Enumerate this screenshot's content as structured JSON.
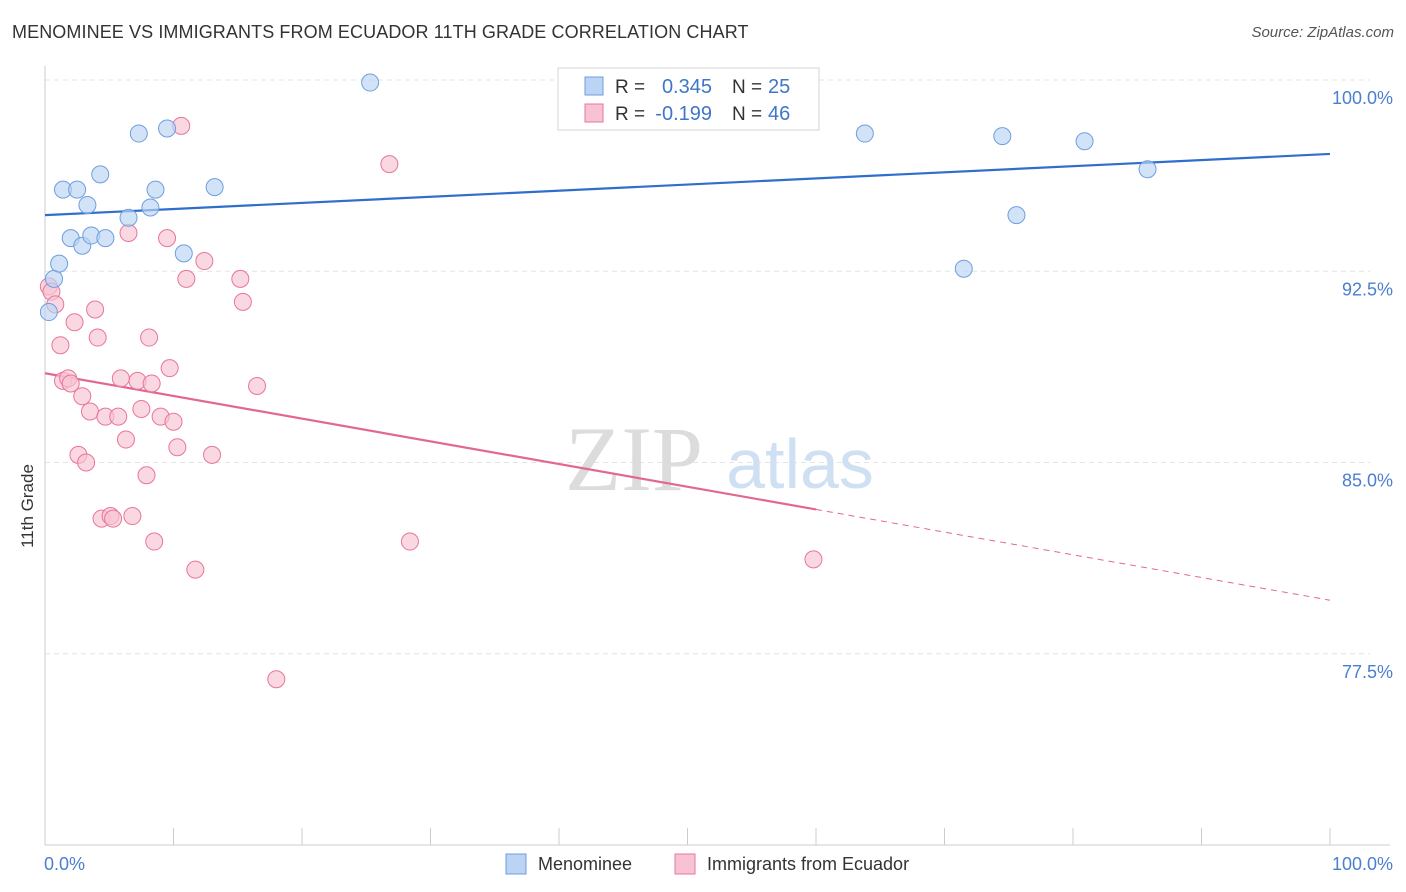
{
  "title": "MENOMINEE VS IMMIGRANTS FROM ECUADOR 11TH GRADE CORRELATION CHART",
  "source": "Source: ZipAtlas.com",
  "watermark": {
    "zip": "ZIP",
    "atlas": "atlas"
  },
  "chart_data": {
    "type": "scatter",
    "ylabel": "11th Grade",
    "xlim": [
      0,
      100
    ],
    "ylim": [
      70,
      100
    ],
    "x_tick_labels": [
      "0.0%",
      "100.0%"
    ],
    "y_ticks": [
      {
        "value": 100.0,
        "label": "100.0%"
      },
      {
        "value": 92.5,
        "label": "92.5%"
      },
      {
        "value": 85.0,
        "label": "85.0%"
      },
      {
        "value": 77.5,
        "label": "77.5%"
      }
    ],
    "grid": true,
    "legend_position": "top-center",
    "stats": [
      {
        "r_label": "R =",
        "r": "0.345",
        "n_label": "N =",
        "n": "25"
      },
      {
        "r_label": "R =",
        "r": "-0.199",
        "n_label": "N =",
        "n": "46"
      }
    ],
    "series": [
      {
        "name": "Menominee",
        "color": "#6c9fe0",
        "fill": "#bcd4f3",
        "trend": {
          "x0": 0,
          "y0": 94.7,
          "x1": 100,
          "y1": 97.1,
          "solid_until": 100
        },
        "points": [
          [
            0.3,
            90.9
          ],
          [
            0.7,
            92.2
          ],
          [
            1.1,
            92.8
          ],
          [
            1.4,
            95.7
          ],
          [
            2.0,
            93.8
          ],
          [
            2.5,
            95.7
          ],
          [
            2.9,
            93.5
          ],
          [
            3.3,
            95.1
          ],
          [
            3.6,
            93.9
          ],
          [
            4.3,
            96.3
          ],
          [
            4.7,
            93.8
          ],
          [
            6.5,
            94.6
          ],
          [
            7.3,
            97.9
          ],
          [
            8.2,
            95.0
          ],
          [
            8.6,
            95.7
          ],
          [
            9.5,
            98.1
          ],
          [
            10.8,
            93.2
          ],
          [
            13.2,
            95.8
          ],
          [
            25.3,
            99.9
          ],
          [
            63.8,
            97.9
          ],
          [
            71.5,
            92.6
          ],
          [
            74.5,
            97.8
          ],
          [
            75.6,
            94.7
          ],
          [
            80.9,
            97.6
          ],
          [
            85.8,
            96.5
          ]
        ]
      },
      {
        "name": "Immigrants from Ecuador",
        "color": "#e8759b",
        "fill": "#f7c3d3",
        "trend": {
          "x0": 0,
          "y0": 88.5,
          "x1": 100,
          "y1": 79.6,
          "solid_until": 60
        },
        "points": [
          [
            0.3,
            91.9
          ],
          [
            0.5,
            91.7
          ],
          [
            0.8,
            91.2
          ],
          [
            1.2,
            89.6
          ],
          [
            1.4,
            88.2
          ],
          [
            1.8,
            88.3
          ],
          [
            2.0,
            88.1
          ],
          [
            2.3,
            90.5
          ],
          [
            2.6,
            85.3
          ],
          [
            2.9,
            87.6
          ],
          [
            3.2,
            85.0
          ],
          [
            3.5,
            87.0
          ],
          [
            3.9,
            91.0
          ],
          [
            4.1,
            89.9
          ],
          [
            4.4,
            82.8
          ],
          [
            4.7,
            86.8
          ],
          [
            5.1,
            82.9
          ],
          [
            5.3,
            82.8
          ],
          [
            5.7,
            86.8
          ],
          [
            5.9,
            88.3
          ],
          [
            6.3,
            85.9
          ],
          [
            6.5,
            94.0
          ],
          [
            6.8,
            82.9
          ],
          [
            7.2,
            88.2
          ],
          [
            7.5,
            87.1
          ],
          [
            7.9,
            84.5
          ],
          [
            8.1,
            89.9
          ],
          [
            8.3,
            88.1
          ],
          [
            8.5,
            81.9
          ],
          [
            9.0,
            86.8
          ],
          [
            9.5,
            93.8
          ],
          [
            9.7,
            88.7
          ],
          [
            10.0,
            86.6
          ],
          [
            10.3,
            85.6
          ],
          [
            10.6,
            98.2
          ],
          [
            11.0,
            92.2
          ],
          [
            11.7,
            80.8
          ],
          [
            12.4,
            92.9
          ],
          [
            13.0,
            85.3
          ],
          [
            15.2,
            92.2
          ],
          [
            15.4,
            91.3
          ],
          [
            16.5,
            88.0
          ],
          [
            18.0,
            76.5
          ],
          [
            26.8,
            96.7
          ],
          [
            28.4,
            81.9
          ],
          [
            59.8,
            81.2
          ]
        ]
      }
    ]
  }
}
